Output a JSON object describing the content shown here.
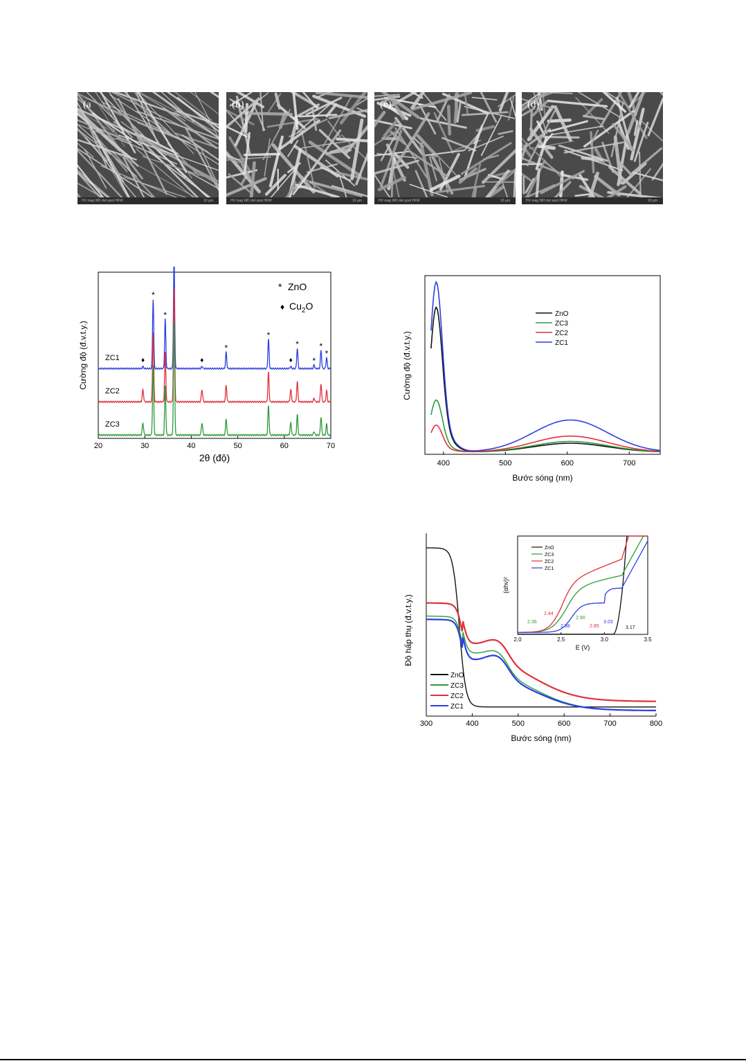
{
  "sem_panels": [
    {
      "label": "(a",
      "info_left": "HV mag WD det spot HFW",
      "info_right": "10 µm"
    },
    {
      "label": "(b)",
      "info_left": "HV mag WD det spot HFW",
      "info_right": "10 µm"
    },
    {
      "label": "(c)",
      "info_left": "HV mag WD det spot HFW",
      "info_right": "10 µm"
    },
    {
      "label": "(d)",
      "info_left": "HV mag WD det spot HFW",
      "info_right": "10 µm"
    }
  ],
  "chart_data": [
    {
      "id": "xrd",
      "type": "line",
      "xlabel": "2θ (độ)",
      "ylabel": "Cường độ (đ.v.t.y.)",
      "xlim": [
        20,
        70
      ],
      "xticks": [
        "20",
        "30",
        "40",
        "50",
        "60",
        "70"
      ],
      "legend": [
        {
          "symbol": "*",
          "text": "ZnO"
        },
        {
          "symbol": "♦",
          "text": "Cu2O"
        }
      ],
      "zno_peaks": [
        31.8,
        34.4,
        36.3,
        47.5,
        56.6,
        62.8,
        66.4,
        67.9,
        69.1
      ],
      "cu2o_peaks": [
        29.6,
        42.3,
        61.4
      ],
      "series": [
        {
          "name": "ZC1",
          "color": "#2a3fe0",
          "offset": 0.42,
          "peak_scale": 0.55,
          "cu2o_scale": 0.02
        },
        {
          "name": "ZC2",
          "color": "#e0303a",
          "offset": 0.22,
          "peak_scale": 0.55,
          "cu2o_scale": 0.12
        },
        {
          "name": "ZC3",
          "color": "#2c9a3a",
          "offset": 0.02,
          "peak_scale": 0.55,
          "cu2o_scale": 0.12
        }
      ]
    },
    {
      "id": "pl",
      "type": "line",
      "xlabel": "Bước sóng (nm)",
      "ylabel": "Cường độ (đ.v.t.y.)",
      "xlim": [
        370,
        750
      ],
      "xticks": [
        "400",
        "500",
        "600",
        "700"
      ],
      "series": [
        {
          "name": "ZnO",
          "color": "#111111",
          "uv": 0.75,
          "visible": 0.05
        },
        {
          "name": "ZC3",
          "color": "#2c9a3a",
          "uv": 0.27,
          "visible": 0.06
        },
        {
          "name": "ZC2",
          "color": "#e0303a",
          "uv": 0.14,
          "visible": 0.09
        },
        {
          "name": "ZC1",
          "color": "#2a3fe0",
          "uv": 0.88,
          "visible": 0.18
        }
      ]
    },
    {
      "id": "uvvis",
      "type": "line",
      "xlabel": "Bước sóng (nm)",
      "ylabel": "Độ hấp thụ (đ.v.t.y.)",
      "xlim": [
        300,
        800
      ],
      "xticks": [
        "300",
        "400",
        "500",
        "600",
        "700",
        "800"
      ],
      "series": [
        {
          "name": "ZnO",
          "color": "#111111"
        },
        {
          "name": "ZC3",
          "color": "#2c9a3a"
        },
        {
          "name": "ZC2",
          "color": "#e0303a"
        },
        {
          "name": "ZC1",
          "color": "#2a3fe0"
        }
      ],
      "inset": {
        "xlabel": "E (V)",
        "ylabel": "(αhν)²",
        "xlim": [
          2.0,
          3.5
        ],
        "xticks": [
          "2.0",
          "2.5",
          "3.0",
          "3.5"
        ],
        "legend": [
          "ZnO",
          "ZC3",
          "ZC2",
          "ZC1"
        ],
        "gap_labels": [
          {
            "text": "2.36",
            "color": "#2c9a3a"
          },
          {
            "text": "2.44",
            "color": "#e0303a"
          },
          {
            "text": "2.38",
            "color": "#2a3fe0"
          },
          {
            "text": "2.90",
            "color": "#2c9a3a"
          },
          {
            "text": "2.85",
            "color": "#e0303a"
          },
          {
            "text": "3.03",
            "color": "#2a3fe0"
          },
          {
            "text": "3.17",
            "color": "#111111"
          }
        ]
      }
    }
  ]
}
